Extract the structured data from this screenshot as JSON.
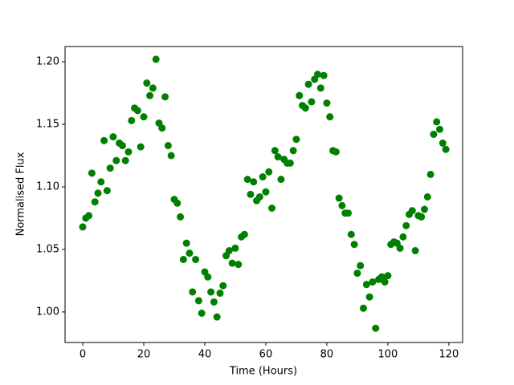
{
  "chart_data": {
    "type": "scatter",
    "xlabel": "Time (Hours)",
    "ylabel": "Normalised Flux",
    "color": "#008000",
    "xlim": [
      -5.79,
      124.5
    ],
    "ylim": [
      0.9756,
      1.2122
    ],
    "xticks": [
      0,
      20,
      40,
      60,
      80,
      100,
      120
    ],
    "yticks": [
      {
        "value": 1.0,
        "label": "1.00"
      },
      1.05,
      {
        "value": 1.1,
        "label": "1.10"
      },
      1.15,
      {
        "value": 1.2,
        "label": "1.20"
      }
    ],
    "x": [
      0,
      1,
      2,
      3,
      4,
      5,
      6,
      7,
      8,
      9,
      10,
      11,
      12,
      13,
      14,
      15,
      16,
      17,
      18,
      19,
      20,
      21,
      22,
      23,
      24,
      25,
      26,
      27,
      28,
      29,
      30,
      31,
      32,
      33,
      34,
      35,
      36,
      37,
      38,
      39,
      40,
      41,
      42,
      43,
      44,
      45,
      46,
      47,
      48,
      49,
      50,
      51,
      52,
      53,
      54,
      55,
      56,
      57,
      58,
      59,
      60,
      61,
      62,
      63,
      64,
      65,
      66,
      67,
      68,
      69,
      70,
      71,
      72,
      73,
      74,
      75,
      76,
      77,
      78,
      79,
      80,
      81,
      82,
      83,
      84,
      85,
      86,
      87,
      88,
      89,
      90,
      91,
      92,
      93,
      94,
      95,
      96,
      97,
      98,
      99,
      100,
      101,
      102,
      103,
      104,
      105,
      106,
      107,
      108,
      109,
      110,
      111,
      112,
      113,
      114,
      115,
      116,
      117,
      118,
      119
    ],
    "values": [
      1.068,
      1.075,
      1.077,
      1.111,
      1.088,
      1.095,
      1.104,
      1.137,
      1.097,
      1.115,
      1.14,
      1.121,
      1.135,
      1.133,
      1.121,
      1.128,
      1.153,
      1.163,
      1.161,
      1.132,
      1.156,
      1.183,
      1.173,
      1.179,
      1.202,
      1.151,
      1.147,
      1.172,
      1.133,
      1.125,
      1.09,
      1.087,
      1.076,
      1.042,
      1.055,
      1.047,
      1.016,
      1.042,
      1.009,
      0.999,
      1.032,
      1.028,
      1.016,
      1.008,
      0.996,
      1.015,
      1.021,
      1.045,
      1.049,
      1.039,
      1.051,
      1.038,
      1.06,
      1.062,
      1.106,
      1.094,
      1.104,
      1.089,
      1.092,
      1.108,
      1.096,
      1.112,
      1.083,
      1.129,
      1.124,
      1.106,
      1.122,
      1.119,
      1.119,
      1.129,
      1.138,
      1.173,
      1.165,
      1.163,
      1.182,
      1.168,
      1.186,
      1.19,
      1.179,
      1.189,
      1.167,
      1.156,
      1.129,
      1.128,
      1.091,
      1.085,
      1.079,
      1.079,
      1.062,
      1.054,
      1.031,
      1.037,
      1.003,
      1.022,
      1.012,
      1.024,
      0.987,
      1.026,
      1.028,
      1.024,
      1.029,
      1.054,
      1.056,
      1.055,
      1.051,
      1.06,
      1.069,
      1.078,
      1.081,
      1.049,
      1.077,
      1.076,
      1.082,
      1.092,
      1.11,
      1.142,
      1.152,
      1.146,
      1.135,
      1.13
    ]
  }
}
